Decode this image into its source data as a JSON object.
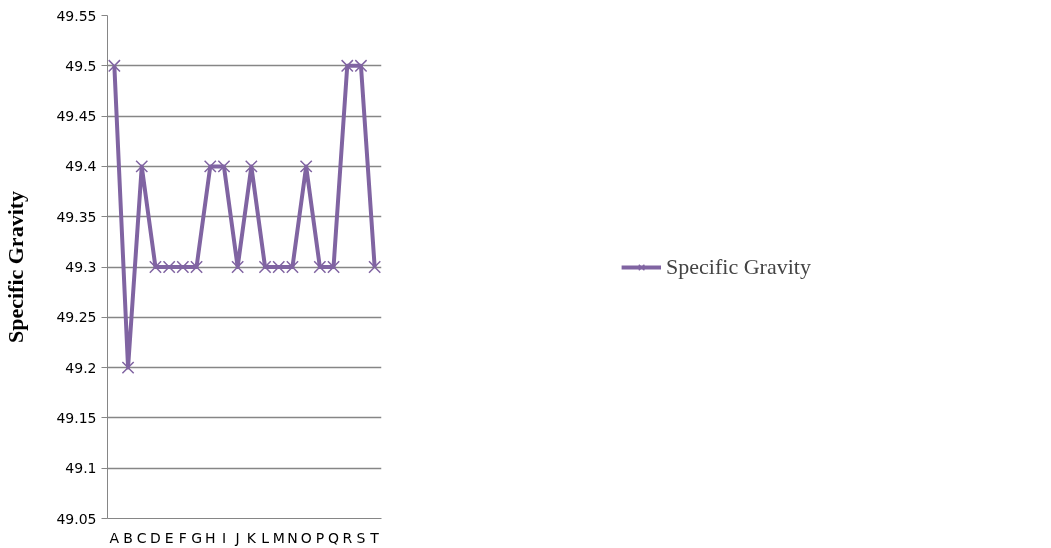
{
  "chart_data": {
    "type": "line",
    "ylabel": "Specific Gravity",
    "categories": [
      "A",
      "B",
      "C",
      "D",
      "E",
      "F",
      "G",
      "H",
      "I",
      "J",
      "K",
      "L",
      "M",
      "N",
      "O",
      "P",
      "Q",
      "R",
      "S",
      "T"
    ],
    "series": [
      {
        "name": "Specific Gravity",
        "color": "#8064a2",
        "values": [
          49.5,
          49.2,
          49.4,
          49.3,
          49.3,
          49.3,
          49.3,
          49.4,
          49.4,
          49.3,
          49.4,
          49.3,
          49.3,
          49.3,
          49.4,
          49.3,
          49.3,
          49.5,
          49.5,
          49.3
        ]
      }
    ],
    "ylim": [
      49.05,
      49.55
    ],
    "yticks": [
      {
        "value": 49.05,
        "label": "49.05"
      },
      {
        "value": 49.1,
        "label": "49.1"
      },
      {
        "value": 49.15,
        "label": "49.15"
      },
      {
        "value": 49.2,
        "label": "49.2"
      },
      {
        "value": 49.25,
        "label": "49.25"
      },
      {
        "value": 49.3,
        "label": "49.3"
      },
      {
        "value": 49.35,
        "label": "49.35"
      },
      {
        "value": 49.4,
        "label": "49.4"
      },
      {
        "value": 49.45,
        "label": "49.45"
      },
      {
        "value": 49.5,
        "label": "49.5"
      },
      {
        "value": 49.55,
        "label": "49.55"
      }
    ],
    "grid": "y",
    "legend": "right",
    "marker": "cross",
    "line_style": "solid"
  }
}
